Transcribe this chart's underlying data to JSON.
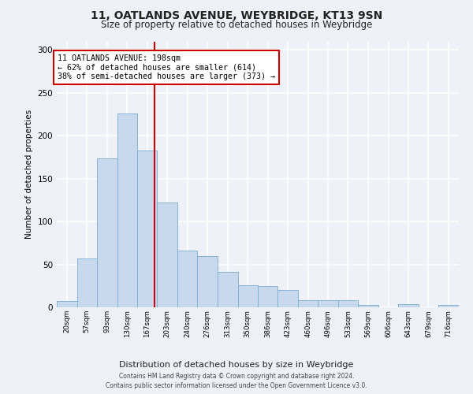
{
  "title": "11, OATLANDS AVENUE, WEYBRIDGE, KT13 9SN",
  "subtitle": "Size of property relative to detached houses in Weybridge",
  "xlabel": "Distribution of detached houses by size in Weybridge",
  "ylabel": "Number of detached properties",
  "bar_color": "#c8d9ee",
  "bar_edge_color": "#7aadd4",
  "background_color": "#eef2f8",
  "plot_bg_color": "#eef2f8",
  "grid_color": "#ffffff",
  "vline_x": 198,
  "vline_color": "#cc0000",
  "bin_edges": [
    20,
    57,
    93,
    130,
    167,
    203,
    240,
    276,
    313,
    350,
    386,
    423,
    460,
    496,
    533,
    569,
    606,
    643,
    679,
    716,
    753
  ],
  "bar_heights": [
    7,
    57,
    174,
    226,
    183,
    122,
    66,
    60,
    41,
    26,
    25,
    20,
    8,
    8,
    8,
    3,
    0,
    4,
    0,
    3
  ],
  "annotation_text": "11 OATLANDS AVENUE: 198sqm\n← 62% of detached houses are smaller (614)\n38% of semi-detached houses are larger (373) →",
  "annotation_box_color": "#ffffff",
  "annotation_box_edge": "#cc0000",
  "footer_line1": "Contains HM Land Registry data © Crown copyright and database right 2024.",
  "footer_line2": "Contains public sector information licensed under the Open Government Licence v3.0.",
  "ylim": [
    0,
    310
  ],
  "yticks": [
    0,
    50,
    100,
    150,
    200,
    250,
    300
  ]
}
